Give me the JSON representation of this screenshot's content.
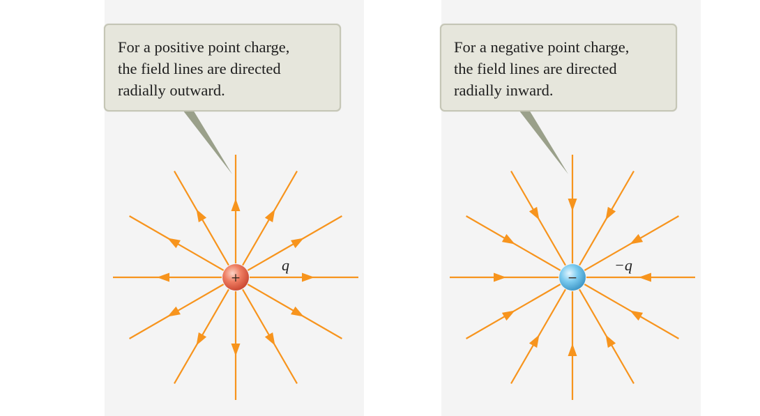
{
  "positive": {
    "callout_lines": [
      "For a positive point charge,",
      "the field lines are directed",
      "radially outward."
    ],
    "charge_label": "q",
    "charge_sign": "+",
    "field_direction": "outward",
    "line_count": 12
  },
  "negative": {
    "callout_lines": [
      "For a negative point charge,",
      "the field lines are directed",
      "radially inward."
    ],
    "charge_label": "−q",
    "charge_sign": "−",
    "field_direction": "inward",
    "line_count": 12
  },
  "colors": {
    "field_line": "#f7941d",
    "positive_charge": "#e8604a",
    "negative_charge": "#5bb8e6",
    "callout_bg": "#e6e6dc",
    "callout_border": "#c5c6b6",
    "pointer": "#9aa08a"
  }
}
